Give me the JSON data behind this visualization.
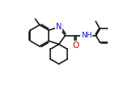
{
  "bg_color": "#ffffff",
  "bond_color": "#1a1a1a",
  "atom_color": "#1010cc",
  "lw": 1.2,
  "fs": 6.5,
  "xlim": [
    -0.05,
    1.05
  ],
  "ylim": [
    -0.05,
    1.05
  ]
}
